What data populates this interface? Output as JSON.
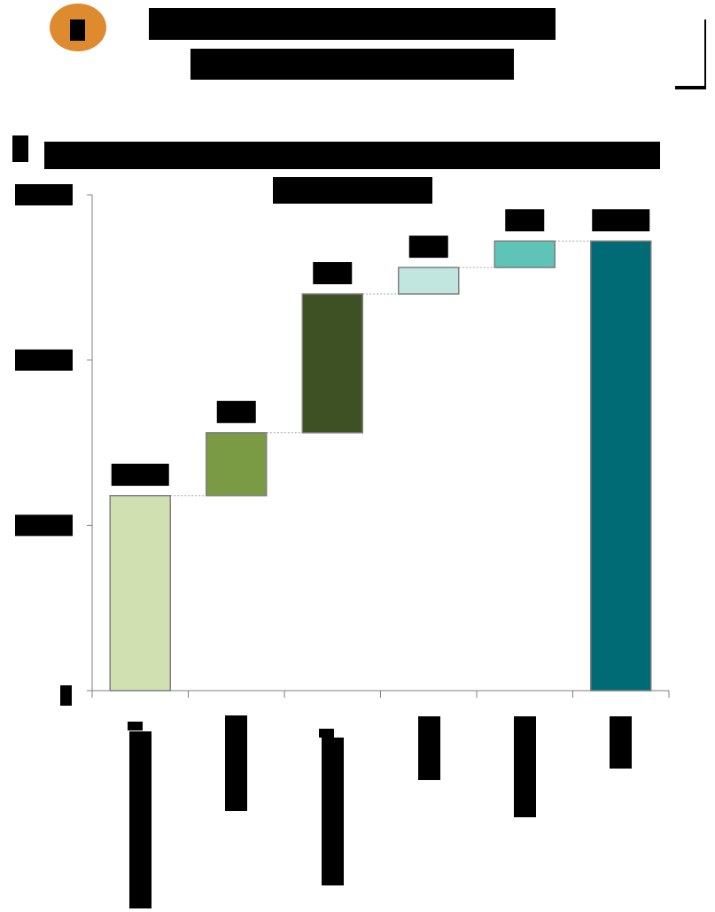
{
  "header": {
    "badge_label": "1",
    "title_line_1": "",
    "title_line_2": ""
  },
  "section": {
    "marker": "",
    "subtitle_line_1": "",
    "subtitle_line_2": ""
  },
  "colors": {
    "badge": "#de8a2e",
    "bar_edge": "#7f7f7f",
    "connector": "#a6a6a6",
    "axis": "#7f7f7f"
  },
  "chart_data": {
    "type": "waterfall",
    "title": "",
    "xlabel": "",
    "ylabel": "",
    "ylim": [
      0,
      3
    ],
    "y_ticks": [
      0,
      1,
      2,
      3
    ],
    "y_tick_labels": [
      "0",
      "",
      "",
      ""
    ],
    "categories": [
      "",
      "",
      "",
      "",
      "",
      ""
    ],
    "bars": [
      {
        "kind": "total",
        "value": 1.18,
        "label": "",
        "color": "#d0e0b0"
      },
      {
        "kind": "delta",
        "value": 0.38,
        "label": "",
        "color": "#7a9b43"
      },
      {
        "kind": "delta",
        "value": 0.84,
        "label": "",
        "color": "#3d5125"
      },
      {
        "kind": "delta",
        "value": 0.16,
        "label": "",
        "color": "#c1e6e0"
      },
      {
        "kind": "delta",
        "value": 0.16,
        "label": "",
        "color": "#5ec4b8"
      },
      {
        "kind": "total",
        "value": 2.72,
        "label": "",
        "color": "#006b74"
      }
    ]
  }
}
